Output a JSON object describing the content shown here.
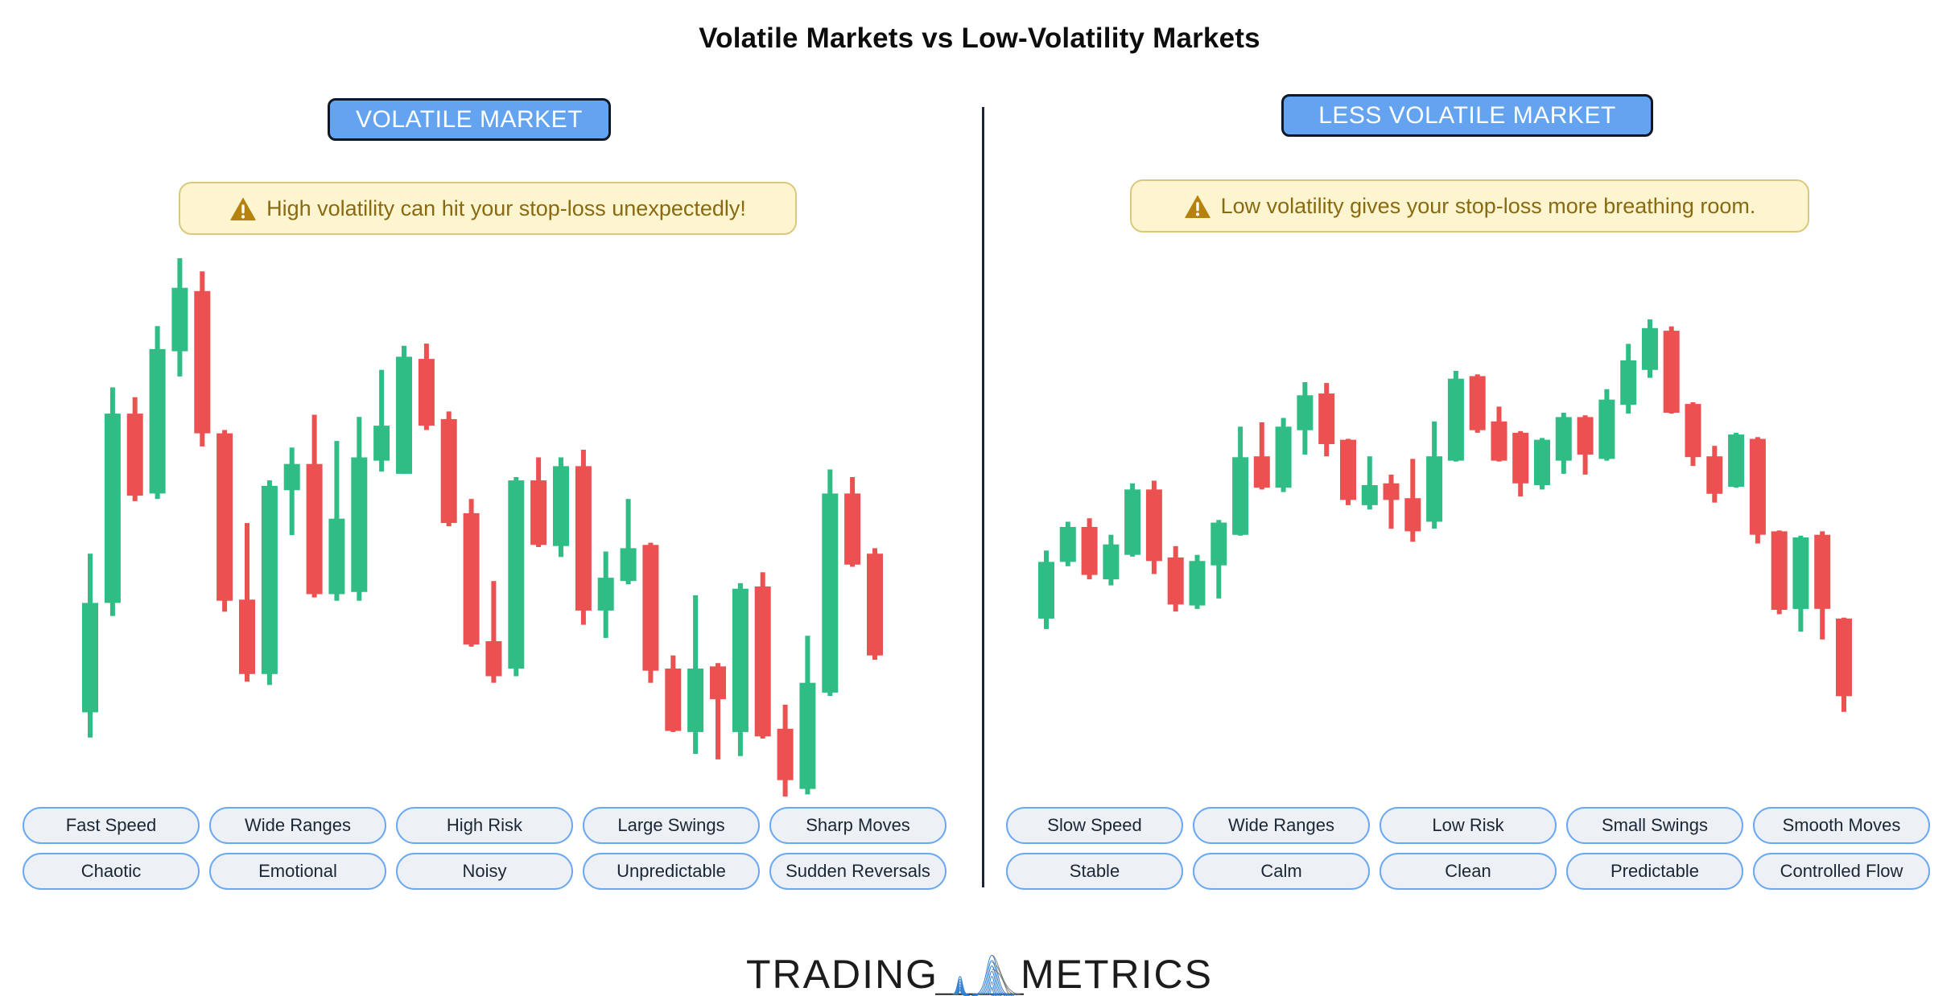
{
  "title": "Volatile Markets vs Low-Volatility Markets",
  "colors": {
    "accent_blue": "#64a3f0",
    "badge_border": "#101826",
    "warning_bg": "#fcf5d0",
    "warning_border": "#dcc87c",
    "warning_text": "#8a6a10",
    "warning_icon": "#b5820d",
    "up": "#2fbd85",
    "down": "#ec5151",
    "pill_bg": "#edf0f5",
    "pill_border": "#6aa9f2",
    "pill_text": "#1b2634",
    "divider": "#1c2433",
    "title_text": "#0d0d0d",
    "logo_text": "#1c1c1c",
    "wave_blue": "#2e7ed6",
    "wave_gray": "#777777"
  },
  "left_panel": {
    "badge": "VOLATILE MARKET",
    "warning": "High volatility can hit your stop-loss unexpectedly!",
    "tags_row1": [
      "Fast Speed",
      "Wide Ranges",
      "High Risk",
      "Large Swings",
      "Sharp Moves"
    ],
    "tags_row2": [
      "Chaotic",
      "Emotional",
      "Noisy",
      "Unpredictable",
      "Sudden Reversals"
    ]
  },
  "right_panel": {
    "badge": "LESS VOLATILE MARKET",
    "warning": "Low volatility gives your stop-loss more breathing room.",
    "tags_row1": [
      "Slow Speed",
      "Wide Ranges",
      "Low Risk",
      "Small Swings",
      "Smooth Moves"
    ],
    "tags_row2": [
      "Stable",
      "Calm",
      "Clean",
      "Predictable",
      "Controlled Flow"
    ]
  },
  "logo": {
    "left_word": "TRADING",
    "right_word": "METRICS",
    "icon": "waveform-pulse-icon"
  },
  "chart_data": [
    {
      "id": "volatile",
      "type": "candlestick",
      "title": "VOLATILE MARKET",
      "legend": "none",
      "grid": false,
      "axes_visible": false,
      "price_scale": "relative 0-104 (unlabeled decorative chart)",
      "up_color": "#2fbd85",
      "down_color": "#ec5151",
      "columns": [
        "open",
        "high",
        "low",
        "close"
      ],
      "candles": [
        [
          18,
          47,
          13.4,
          38
        ],
        [
          38,
          77.4,
          35.6,
          72.6
        ],
        [
          72.6,
          75.6,
          56.6,
          57.6
        ],
        [
          58,
          88.6,
          57,
          84.4
        ],
        [
          84,
          101,
          79.4,
          95.6
        ],
        [
          95,
          98.6,
          66.6,
          69
        ],
        [
          69,
          69.6,
          36.4,
          38.4
        ],
        [
          38.6,
          52.6,
          23.6,
          25
        ],
        [
          25,
          60.4,
          23,
          59.4
        ],
        [
          58.6,
          66.4,
          50.4,
          63.4
        ],
        [
          63.4,
          72.4,
          39,
          39.6
        ],
        [
          39.6,
          67.6,
          38.4,
          53.4
        ],
        [
          40,
          72,
          38.4,
          64.6
        ],
        [
          64,
          80.6,
          62,
          70.4
        ],
        [
          61.6,
          85,
          61.6,
          83
        ],
        [
          82.6,
          85.4,
          69.6,
          70.4
        ],
        [
          71.6,
          73,
          52,
          52.6
        ],
        [
          54.4,
          57,
          30,
          30.4
        ],
        [
          31,
          42,
          23.4,
          24.6
        ],
        [
          26,
          61,
          24.6,
          60.4
        ],
        [
          60.4,
          64.6,
          48.2,
          48.6
        ],
        [
          48.4,
          64.6,
          46.4,
          63
        ],
        [
          63,
          66,
          34,
          36.6
        ],
        [
          36.6,
          47.4,
          31.6,
          42.6
        ],
        [
          42,
          57,
          41.4,
          48
        ],
        [
          48.6,
          49,
          23.4,
          25.6
        ],
        [
          26,
          28.4,
          14.4,
          14.6
        ],
        [
          14.4,
          39.4,
          10.4,
          26
        ],
        [
          26.4,
          27,
          9.4,
          20.4
        ],
        [
          14.4,
          41.6,
          10,
          40.6
        ],
        [
          41,
          43.6,
          13.2,
          13.6
        ],
        [
          15,
          19.4,
          2.6,
          5.6
        ],
        [
          4,
          32,
          3,
          23.4
        ],
        [
          21.6,
          62.4,
          21,
          58
        ],
        [
          58,
          61,
          44.6,
          45
        ],
        [
          47,
          48,
          27.6,
          28.4
        ]
      ]
    },
    {
      "id": "less-volatile",
      "type": "candlestick",
      "title": "LESS VOLATILE MARKET",
      "legend": "none",
      "grid": false,
      "axes_visible": false,
      "price_scale": "relative 0-96 (unlabeled decorative chart)",
      "up_color": "#2fbd85",
      "down_color": "#ec5151",
      "columns": [
        "open",
        "high",
        "low",
        "close"
      ],
      "candles": [
        [
          23.4,
          39,
          21,
          36.4
        ],
        [
          36.4,
          45.6,
          35.4,
          44.4
        ],
        [
          44.4,
          46.4,
          32.4,
          33.4
        ],
        [
          32.4,
          42.6,
          31,
          40.4
        ],
        [
          38,
          54.4,
          37.6,
          53
        ],
        [
          53,
          55,
          33.6,
          36.6
        ],
        [
          37.4,
          40,
          25,
          26.6
        ],
        [
          26.4,
          38,
          25.6,
          36.6
        ],
        [
          35.6,
          46,
          28,
          45.4
        ],
        [
          42.6,
          67.4,
          42.4,
          60.4
        ],
        [
          60.6,
          68.4,
          53,
          53.4
        ],
        [
          53.4,
          69.4,
          52.4,
          67.4
        ],
        [
          66.6,
          77.6,
          61,
          74.6
        ],
        [
          75,
          77.4,
          60.6,
          63.4
        ],
        [
          64.4,
          64.6,
          49.4,
          50.6
        ],
        [
          49.4,
          60.6,
          48.4,
          54
        ],
        [
          54.4,
          56.4,
          44,
          50.6
        ],
        [
          51,
          60,
          41,
          43.4
        ],
        [
          45.6,
          68.6,
          44,
          60.6
        ],
        [
          59.6,
          80.2,
          59.4,
          78.4
        ],
        [
          79,
          79.4,
          66,
          66.6
        ],
        [
          68.6,
          72,
          59.4,
          59.6
        ],
        [
          66,
          66.4,
          51.4,
          54.4
        ],
        [
          54,
          64.8,
          53,
          64.4
        ],
        [
          59.6,
          70.6,
          56.6,
          69.6
        ],
        [
          69.6,
          70,
          56.4,
          61
        ],
        [
          60,
          76,
          59.6,
          73.6
        ],
        [
          72.4,
          86.4,
          70.4,
          82.6
        ],
        [
          80.4,
          92,
          78.6,
          90
        ],
        [
          89.4,
          90.4,
          70.4,
          70.6
        ],
        [
          72.6,
          73,
          58.4,
          60.4
        ],
        [
          60.6,
          63,
          50,
          52
        ],
        [
          53.6,
          66,
          53.4,
          65.6
        ],
        [
          64.6,
          65,
          40.6,
          42.6
        ],
        [
          43.4,
          43.6,
          24.4,
          25.4
        ],
        [
          25.6,
          42.4,
          20.4,
          42
        ],
        [
          42.6,
          43.4,
          18.6,
          25.6
        ],
        [
          23.4,
          23.6,
          2,
          5.6
        ]
      ]
    }
  ]
}
